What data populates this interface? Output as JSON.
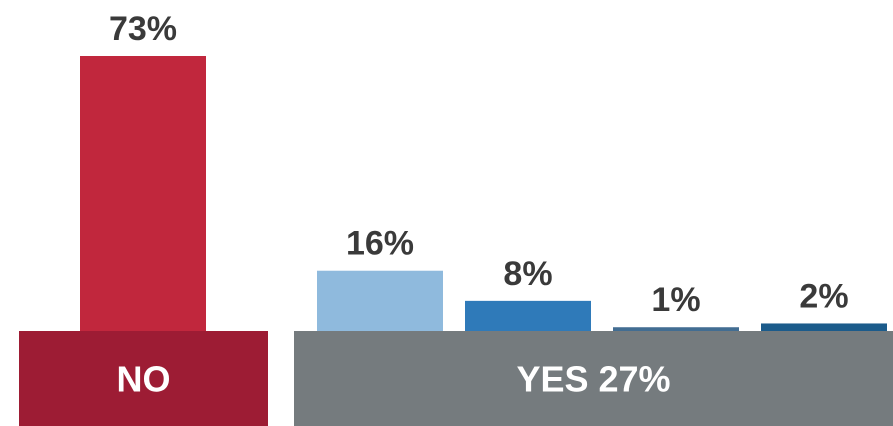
{
  "chart_data": {
    "type": "bar",
    "groups": [
      {
        "label": "NO",
        "color": "#9d1c34",
        "bars": [
          {
            "value": 73,
            "label": "73%",
            "color": "#c1273d"
          }
        ]
      },
      {
        "label": "YES 27%",
        "color": "#757b7e",
        "bars": [
          {
            "value": 16,
            "label": "16%",
            "color": "#8fbadd"
          },
          {
            "value": 8,
            "label": "8%",
            "color": "#2f7ab9"
          },
          {
            "value": 1,
            "label": "1%",
            "color": "#426d92"
          },
          {
            "value": 2,
            "label": "2%",
            "color": "#1b5b8b"
          }
        ]
      }
    ],
    "value_label_color": "#3a3a3a",
    "group_label_color": "#ffffff"
  }
}
